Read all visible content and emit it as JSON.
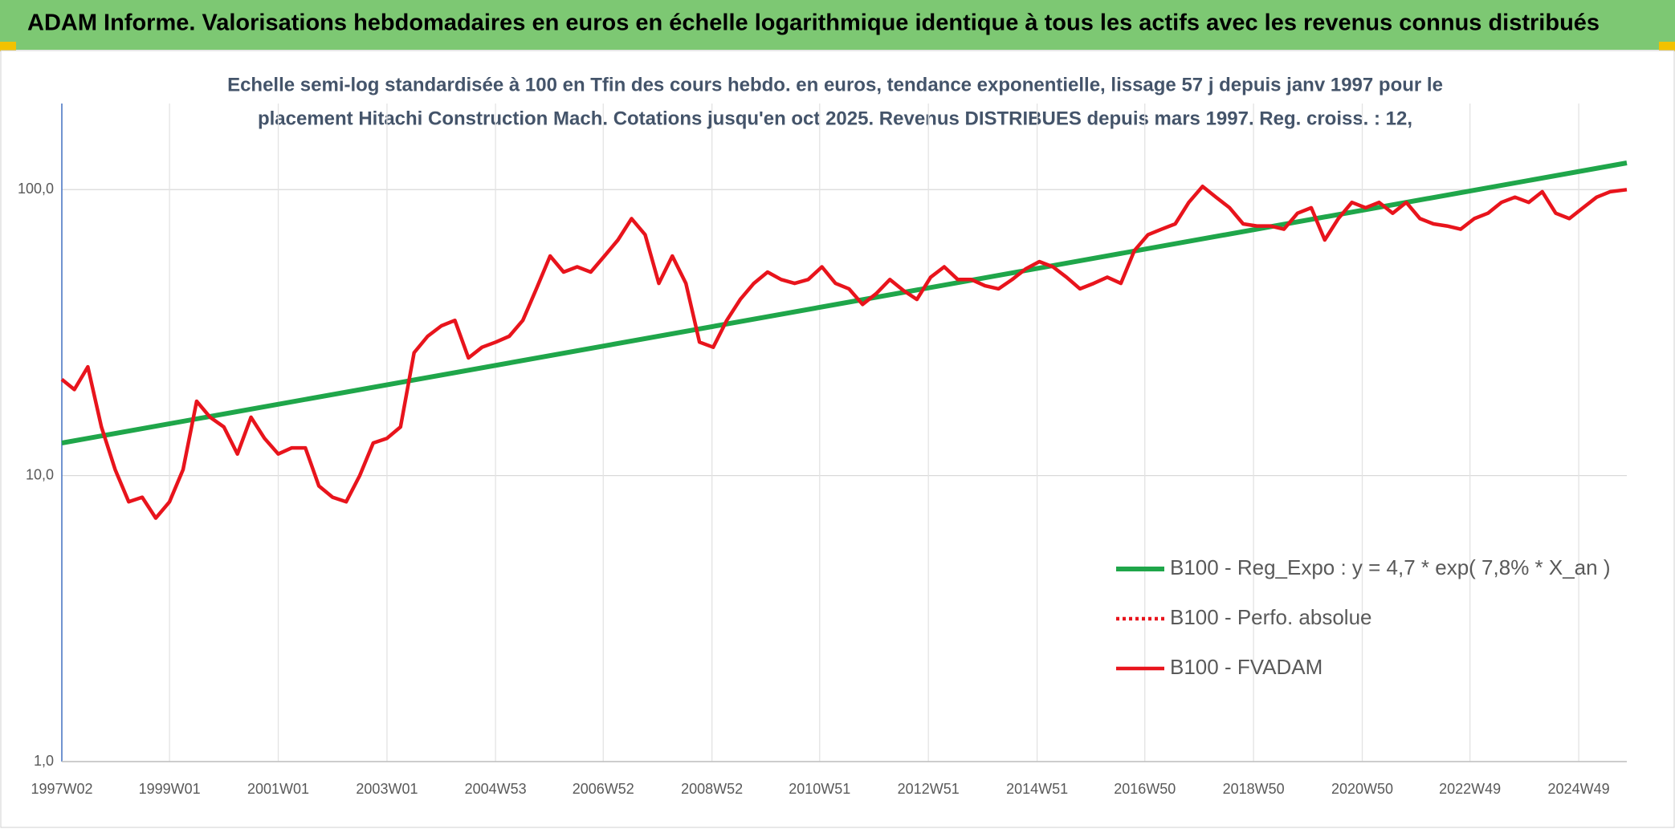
{
  "chart_data": {
    "type": "line",
    "header": "ADAM Informe. Valorisations hebdomadaires en euros en échelle logarithmique identique à tous les actifs avec les revenus connus distribués",
    "title_lines": [
      "Echelle semi-log standardisée à 100 en Tfin des cours hebdo. en euros, tendance exponentielle, lissage 57 j depuis janv 1997 pour le",
      "placement Hitachi Construction Mach. Cotations jusqu'en oct 2025. Revenus DISTRIBUES depuis mars 1997. Reg. croiss. : 12,"
    ],
    "log_scale": true,
    "grid": true,
    "ylim": [
      1,
      200
    ],
    "yticks": [
      {
        "value": 1,
        "label": "1,0"
      },
      {
        "value": 10,
        "label": "10,0"
      },
      {
        "value": 100,
        "label": "100,0"
      }
    ],
    "xlim": [
      "1997W02",
      "2025W43"
    ],
    "xticks": [
      "1997W02",
      "1999W01",
      "2001W01",
      "2003W01",
      "2004W53",
      "2006W52",
      "2008W52",
      "2010W51",
      "2012W51",
      "2014W51",
      "2016W50",
      "2018W50",
      "2020W50",
      "2022W49",
      "2024W49"
    ],
    "series": [
      {
        "name": "B100 - Reg_Expo : y = 4,7 * exp( 7,8% *  X_an )",
        "color": "#1fa64a",
        "dash": "solid",
        "x": [
          "1997W02",
          "2025W43"
        ],
        "values": [
          13,
          124
        ]
      },
      {
        "name": "B100 - Perfo. absolue",
        "color": "#e8141c",
        "dash": "dotted",
        "x": [],
        "values": []
      },
      {
        "name": "B100 - FVADAM",
        "color": "#e8141c",
        "dash": "solid",
        "x": [
          "1997W02",
          "1997W14",
          "1997W27",
          "1997W40",
          "1998W01",
          "1998W14",
          "1998W27",
          "1998W40",
          "1999W01",
          "1999W14",
          "1999W27",
          "1999W40",
          "2000W01",
          "2000W14",
          "2000W27",
          "2000W40",
          "2001W01",
          "2001W14",
          "2001W27",
          "2001W40",
          "2002W01",
          "2002W14",
          "2002W27",
          "2002W40",
          "2003W01",
          "2003W14",
          "2003W27",
          "2003W40",
          "2004W01",
          "2004W14",
          "2004W27",
          "2004W40",
          "2005W01",
          "2005W14",
          "2005W27",
          "2005W40",
          "2006W01",
          "2006W14",
          "2006W27",
          "2006W40",
          "2007W01",
          "2007W14",
          "2007W27",
          "2007W40",
          "2008W01",
          "2008W14",
          "2008W27",
          "2008W40",
          "2009W01",
          "2009W14",
          "2009W27",
          "2009W40",
          "2010W01",
          "2010W14",
          "2010W27",
          "2010W40",
          "2011W01",
          "2011W14",
          "2011W27",
          "2011W40",
          "2012W01",
          "2012W14",
          "2012W27",
          "2012W40",
          "2013W01",
          "2013W14",
          "2013W27",
          "2013W40",
          "2014W01",
          "2014W14",
          "2014W27",
          "2014W40",
          "2015W01",
          "2015W14",
          "2015W27",
          "2015W40",
          "2016W01",
          "2016W14",
          "2016W27",
          "2016W40",
          "2017W01",
          "2017W14",
          "2017W27",
          "2017W40",
          "2018W01",
          "2018W14",
          "2018W27",
          "2018W40",
          "2019W01",
          "2019W14",
          "2019W27",
          "2019W40",
          "2020W01",
          "2020W14",
          "2020W27",
          "2020W40",
          "2021W01",
          "2021W14",
          "2021W27",
          "2021W40",
          "2022W01",
          "2022W14",
          "2022W27",
          "2022W40",
          "2023W01",
          "2023W14",
          "2023W27",
          "2023W40",
          "2024W01",
          "2024W14",
          "2024W27",
          "2024W40",
          "2025W01",
          "2025W14",
          "2025W27",
          "2025W43"
        ],
        "values": [
          21.7,
          20,
          24,
          14.8,
          10.5,
          8.1,
          8.4,
          7.1,
          8.1,
          10.5,
          18.2,
          16,
          14.8,
          11.9,
          16,
          13.5,
          11.9,
          12.5,
          12.5,
          9.2,
          8.4,
          8.1,
          10,
          13,
          13.5,
          14.8,
          26.9,
          30.7,
          33.4,
          34.9,
          25.8,
          28.1,
          29.3,
          30.7,
          34.9,
          45,
          58.6,
          51.5,
          53.7,
          51.5,
          58.6,
          66.7,
          79.2,
          69.6,
          47,
          58.6,
          47,
          29.3,
          28.1,
          34.9,
          41.3,
          47,
          51.5,
          48.5,
          47,
          48.5,
          53.7,
          47,
          45,
          39.7,
          43.3,
          48.5,
          44.4,
          41.3,
          49.4,
          53.7,
          48.5,
          48.5,
          46.1,
          45,
          48.5,
          52.8,
          56,
          53.7,
          49.4,
          45,
          47,
          49.4,
          47,
          61.2,
          69.6,
          72.7,
          75.9,
          90.2,
          102.6,
          94.1,
          86.4,
          75.9,
          74.6,
          74.6,
          72.7,
          82.7,
          86.4,
          66.7,
          79.2,
          90.2,
          86.4,
          90.2,
          82.7,
          90.2,
          79.2,
          75.9,
          74.6,
          72.7,
          79.2,
          82.7,
          90.2,
          94.1,
          90.2,
          98.3,
          82.7,
          79.2,
          86.4,
          94.1,
          98.3,
          100
        ]
      }
    ]
  }
}
